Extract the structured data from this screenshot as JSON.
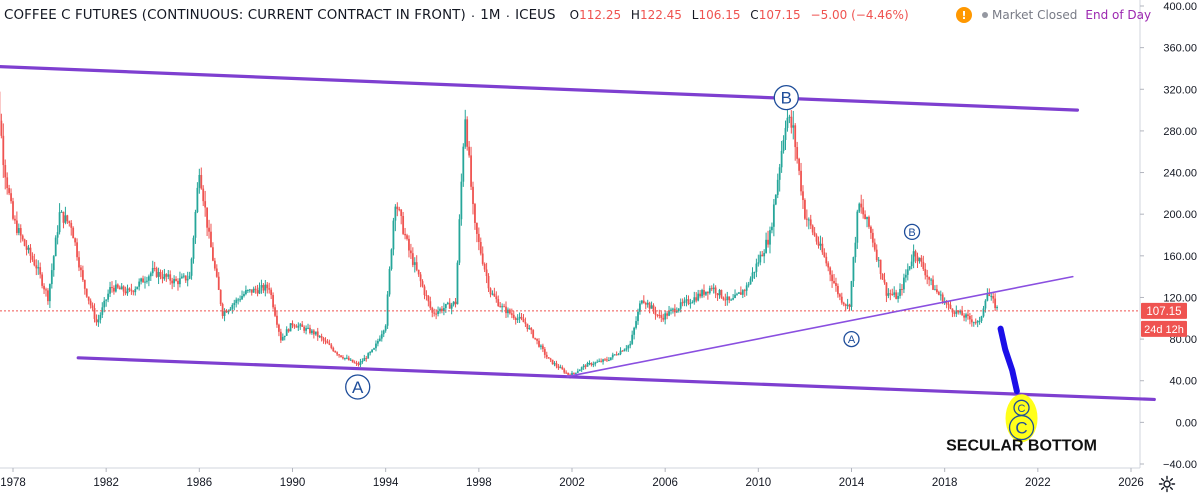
{
  "header": {
    "symbol": "COFFEE C FUTURES (CONTINUOUS: CURRENT CONTRACT IN FRONT)",
    "interval": "1M",
    "exchange": "ICEUS",
    "ohlc": [
      {
        "key": "O",
        "value": "112.25"
      },
      {
        "key": "H",
        "value": "122.45"
      },
      {
        "key": "L",
        "value": "106.15"
      },
      {
        "key": "C",
        "value": "107.15"
      }
    ],
    "change": "−5.00 (−4.46%)",
    "alert_glyph": "!",
    "market_status": "Market Closed",
    "data_mode": "End of Day"
  },
  "price_label": "107.15",
  "countdown_label": "24d 12h",
  "chart_data": {
    "type": "candlestick",
    "x_label": "",
    "y_label": "",
    "y_range": [
      -40,
      400
    ],
    "y_ticks": [
      -40,
      0,
      40,
      80,
      120,
      160,
      200,
      240,
      280,
      320,
      360,
      400
    ],
    "y_tick_labels": [
      "−40.00",
      "0.00",
      "40.00",
      "80.00",
      "120.00",
      "160.00",
      "200.00",
      "240.00",
      "280.00",
      "320.00",
      "360.00",
      "400.00"
    ],
    "x_range": [
      1977.0,
      2027.0
    ],
    "x_ticks": [
      1978,
      1982,
      1986,
      1990,
      1994,
      1998,
      2002,
      2006,
      2010,
      2014,
      2018,
      2022,
      2026
    ],
    "last_close": 107.15,
    "price_path": [
      [
        1977.0,
        300
      ],
      [
        1977.25,
        335
      ],
      [
        1977.6,
        250
      ],
      [
        1978.0,
        195
      ],
      [
        1978.5,
        170
      ],
      [
        1979.0,
        150
      ],
      [
        1979.5,
        120
      ],
      [
        1980.0,
        200
      ],
      [
        1980.5,
        190
      ],
      [
        1981.0,
        135
      ],
      [
        1981.6,
        95
      ],
      [
        1982.2,
        130
      ],
      [
        1983.0,
        125
      ],
      [
        1984.0,
        145
      ],
      [
        1985.0,
        135
      ],
      [
        1985.6,
        140
      ],
      [
        1986.0,
        245
      ],
      [
        1986.4,
        180
      ],
      [
        1987.0,
        105
      ],
      [
        1988.0,
        125
      ],
      [
        1989.0,
        130
      ],
      [
        1989.5,
        80
      ],
      [
        1990.0,
        95
      ],
      [
        1991.0,
        85
      ],
      [
        1992.0,
        65
      ],
      [
        1992.8,
        55
      ],
      [
        1993.5,
        70
      ],
      [
        1994.0,
        95
      ],
      [
        1994.4,
        215
      ],
      [
        1995.0,
        165
      ],
      [
        1996.0,
        105
      ],
      [
        1997.0,
        115
      ],
      [
        1997.4,
        300
      ],
      [
        1997.8,
        190
      ],
      [
        1998.5,
        125
      ],
      [
        1999.0,
        110
      ],
      [
        2000.0,
        95
      ],
      [
        2001.0,
        60
      ],
      [
        2001.9,
        45
      ],
      [
        2002.6,
        55
      ],
      [
        2003.5,
        60
      ],
      [
        2004.5,
        75
      ],
      [
        2005.0,
        120
      ],
      [
        2005.8,
        100
      ],
      [
        2006.5,
        110
      ],
      [
        2007.3,
        120
      ],
      [
        2008.0,
        130
      ],
      [
        2008.8,
        115
      ],
      [
        2009.5,
        130
      ],
      [
        2010.5,
        180
      ],
      [
        2011.2,
        295
      ],
      [
        2011.5,
        280
      ],
      [
        2012.0,
        200
      ],
      [
        2012.8,
        160
      ],
      [
        2013.5,
        120
      ],
      [
        2013.9,
        110
      ],
      [
        2014.3,
        210
      ],
      [
        2014.8,
        185
      ],
      [
        2015.5,
        125
      ],
      [
        2016.0,
        120
      ],
      [
        2016.7,
        165
      ],
      [
        2017.5,
        130
      ],
      [
        2018.2,
        110
      ],
      [
        2019.0,
        100
      ],
      [
        2019.5,
        95
      ],
      [
        2019.8,
        125
      ],
      [
        2020.1,
        115
      ],
      [
        2020.3,
        107.15
      ]
    ],
    "drawings": {
      "channel_upper": [
        [
          1977.2,
          342
        ],
        [
          2023.7,
          300
        ]
      ],
      "channel_lower": [
        [
          1980.8,
          62
        ],
        [
          2027.0,
          22
        ]
      ],
      "trendline": [
        [
          2001.8,
          44
        ],
        [
          2023.5,
          140
        ]
      ],
      "projection": [
        [
          2020.4,
          90
        ],
        [
          2020.6,
          70
        ],
        [
          2020.9,
          50
        ],
        [
          2021.1,
          30
        ]
      ],
      "wave_labels": [
        {
          "text": "A",
          "x": 1992.8,
          "y": 34,
          "size": "large"
        },
        {
          "text": "B",
          "x": 2011.2,
          "y": 312,
          "size": "large"
        },
        {
          "text": "A",
          "x": 2014.0,
          "y": 80,
          "size": "small"
        },
        {
          "text": "B",
          "x": 2016.6,
          "y": 183,
          "size": "small"
        },
        {
          "text": "C",
          "x": 2021.3,
          "y": 14,
          "size": "small",
          "highlight": true
        },
        {
          "text": "C",
          "x": 2021.3,
          "y": -5,
          "size": "large",
          "highlight": true
        }
      ],
      "annotation": {
        "text": "SECULAR BOTTOM",
        "x": 2021.3,
        "y": -27
      }
    },
    "colors": {
      "candle_up": "#26a69a",
      "candle_down": "#ef5350",
      "channel": "#7e3fd0",
      "trendline": "#8a4fe0",
      "projection": "#1c0fe8",
      "highlight": "#ffff1a",
      "label": "#1e4d9a",
      "price_line": "#ef5350"
    }
  }
}
